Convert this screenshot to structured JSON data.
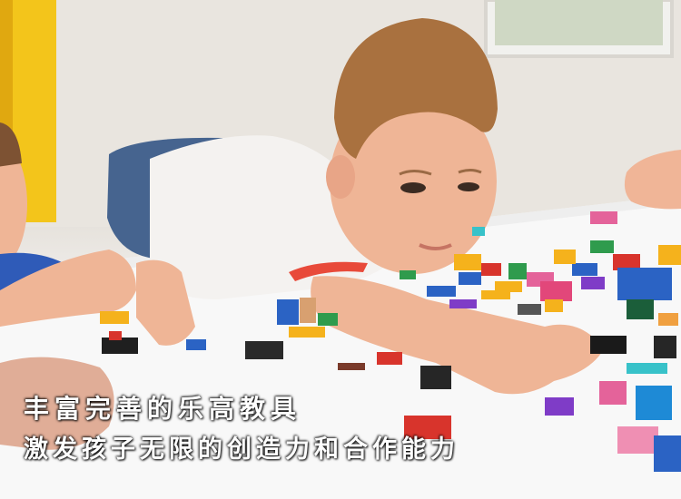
{
  "photo": {
    "subject": "children playing with toy bricks",
    "colors": {
      "wall": "#e8e4de",
      "shelf": "#f3c51b",
      "table": "#f7f7f7",
      "shirt": "#f4f2f0",
      "hair": "#a9713f",
      "skin": "#efb596",
      "jeans": "#46648f",
      "brick_red": "#d8342c",
      "brick_blue": "#2b63c4",
      "brick_yellow": "#f5b21c",
      "brick_green": "#2f9b4d"
    }
  },
  "caption": {
    "line1": "丰富完善的乐高教具",
    "line2": "激发孩子无限的创造力和合作能力"
  }
}
